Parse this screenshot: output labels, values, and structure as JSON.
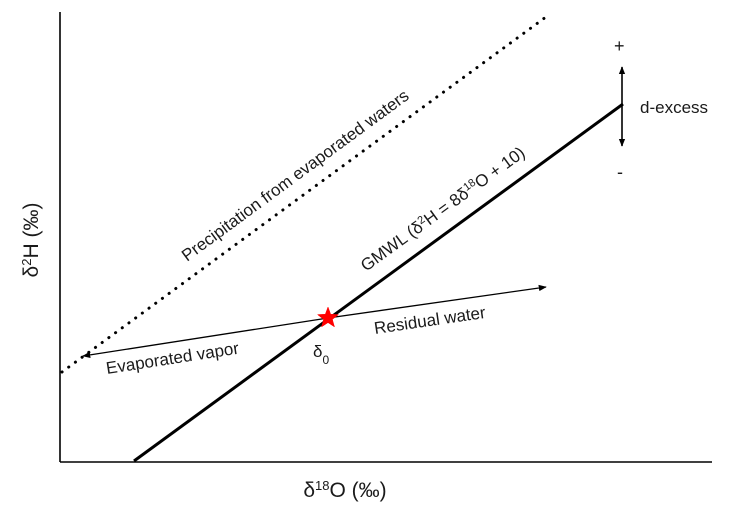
{
  "diagram": {
    "y_axis": {
      "symbol": "δ",
      "sup": "2",
      "rest": "H (‰)"
    },
    "x_axis": {
      "symbol": "δ",
      "sup": "18",
      "rest": "O (‰)"
    },
    "dotted_line_label": "Precipitation from evaporated waters",
    "gmwl_label": {
      "part1": "GMWL (δ",
      "sup1": "2",
      "part2": "H = 8δ",
      "sup2": "18",
      "part3": "O + 10)"
    },
    "residual_label": "Residual water",
    "vapor_label": "Evaporated vapor",
    "origin_label": {
      "base": "δ",
      "sub": "0"
    },
    "d_excess": {
      "label": "d-excess",
      "plus": "+",
      "minus": "-"
    },
    "colors": {
      "star": "#ff0000",
      "line": "#000000"
    }
  }
}
